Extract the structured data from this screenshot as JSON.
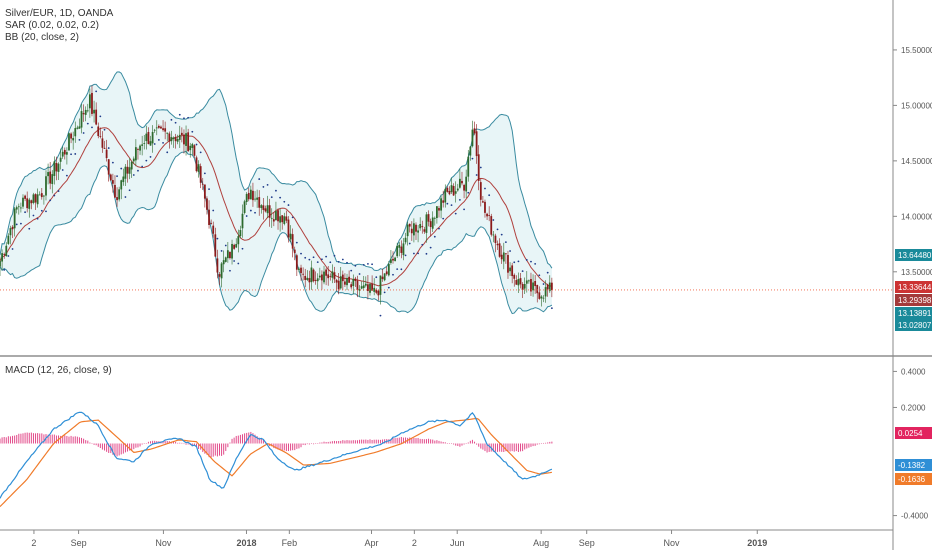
{
  "legend": {
    "main": [
      "Silver/EUR, 1D, OANDA",
      "SAR (0.02, 0.02, 0.2)",
      "BB (20, close, 2)"
    ],
    "macd": "MACD (12, 26, close, 9)"
  },
  "colors": {
    "candle_up": "#2d6a2d",
    "candle_down": "#8b1a1a",
    "bb_band": "#3a8ba0",
    "bb_basis": "#b0413e",
    "bb_fill": "#d9eef1",
    "sar": "#1f3b8a",
    "macd_line": "#2f8fd6",
    "signal_line": "#f07b2a",
    "hist": "#e24a8a",
    "price_line": "#f06040",
    "tag_bb_upper": "#1a8a9a",
    "tag_price": "#cc3333",
    "tag_bb_basis": "#a33a3a",
    "tag_macd": "#2f8fd6",
    "tag_signal": "#f07b2a",
    "tag_hist": "#e2245f"
  },
  "chart_data": {
    "type": "candlestick",
    "symbol": "Silver/EUR",
    "timeframe": "1D",
    "source": "OANDA",
    "x_ticks": [
      {
        "label": "2",
        "t": 0.038
      },
      {
        "label": "Sep",
        "t": 0.088
      },
      {
        "label": "Nov",
        "t": 0.183
      },
      {
        "label": "2018",
        "t": 0.276,
        "bold": true
      },
      {
        "label": "Feb",
        "t": 0.324
      },
      {
        "label": "Apr",
        "t": 0.416
      },
      {
        "label": "2",
        "t": 0.464
      },
      {
        "label": "Jun",
        "t": 0.512
      },
      {
        "label": "Aug",
        "t": 0.606
      },
      {
        "label": "Sep",
        "t": 0.657
      },
      {
        "label": "Nov",
        "t": 0.752
      },
      {
        "label": "2019",
        "t": 0.848,
        "bold": true
      }
    ],
    "data_end_t": 0.618,
    "price_pane": {
      "ylim": [
        12.75,
        15.95
      ],
      "y_ticks": [
        "15.50000",
        "15.00000",
        "14.50000",
        "14.00000",
        "13.50000"
      ],
      "close_keyframes": [
        [
          0.0,
          13.6
        ],
        [
          0.02,
          14.1
        ],
        [
          0.045,
          14.2
        ],
        [
          0.07,
          14.55
        ],
        [
          0.1,
          15.05
        ],
        [
          0.13,
          14.2
        ],
        [
          0.16,
          14.7
        ],
        [
          0.19,
          14.75
        ],
        [
          0.215,
          14.65
        ],
        [
          0.235,
          13.95
        ],
        [
          0.245,
          13.5
        ],
        [
          0.26,
          13.7
        ],
        [
          0.28,
          14.25
        ],
        [
          0.3,
          14.05
        ],
        [
          0.32,
          14.0
        ],
        [
          0.335,
          13.45
        ],
        [
          0.36,
          13.5
        ],
        [
          0.38,
          13.4
        ],
        [
          0.4,
          13.35
        ],
        [
          0.42,
          13.3
        ],
        [
          0.44,
          13.6
        ],
        [
          0.46,
          13.9
        ],
        [
          0.48,
          13.95
        ],
        [
          0.5,
          14.2
        ],
        [
          0.52,
          14.3
        ],
        [
          0.53,
          14.85
        ],
        [
          0.54,
          14.1
        ],
        [
          0.56,
          13.7
        ],
        [
          0.58,
          13.4
        ],
        [
          0.6,
          13.32
        ],
        [
          0.618,
          13.33
        ]
      ],
      "last_close": 13.33644,
      "tags": [
        {
          "label": "13.64480",
          "value": 13.6448,
          "color": "tag_bb_upper"
        },
        {
          "label": "13.33644",
          "value": 13.33644,
          "color": "tag_price"
        },
        {
          "label": "13.29398",
          "value": 13.29398,
          "color": "tag_bb_basis"
        },
        {
          "label": "13.13891",
          "value": 13.13891,
          "color": "tag_bb_upper"
        },
        {
          "label": "13.02807",
          "value": 13.02807,
          "color": "tag_bb_upper"
        }
      ]
    },
    "macd_pane": {
      "ylim": [
        -0.48,
        0.48
      ],
      "y_ticks": [
        "0.4000",
        "0.2000",
        "-0.4000"
      ],
      "macd_keyframes": [
        [
          0.0,
          -0.3
        ],
        [
          0.03,
          -0.1
        ],
        [
          0.06,
          0.08
        ],
        [
          0.09,
          0.18
        ],
        [
          0.11,
          0.1
        ],
        [
          0.13,
          -0.08
        ],
        [
          0.15,
          -0.1
        ],
        [
          0.17,
          0.0
        ],
        [
          0.2,
          0.03
        ],
        [
          0.22,
          -0.02
        ],
        [
          0.235,
          -0.2
        ],
        [
          0.25,
          -0.25
        ],
        [
          0.265,
          -0.08
        ],
        [
          0.28,
          0.05
        ],
        [
          0.295,
          0.02
        ],
        [
          0.31,
          -0.08
        ],
        [
          0.33,
          -0.15
        ],
        [
          0.35,
          -0.12
        ],
        [
          0.4,
          -0.04
        ],
        [
          0.43,
          0.0
        ],
        [
          0.45,
          0.06
        ],
        [
          0.48,
          0.12
        ],
        [
          0.5,
          0.13
        ],
        [
          0.515,
          0.1
        ],
        [
          0.53,
          0.17
        ],
        [
          0.545,
          0.0
        ],
        [
          0.565,
          -0.1
        ],
        [
          0.585,
          -0.2
        ],
        [
          0.6,
          -0.18
        ],
        [
          0.618,
          -0.14
        ]
      ],
      "signal_keyframes": [
        [
          0.0,
          -0.35
        ],
        [
          0.03,
          -0.2
        ],
        [
          0.06,
          0.0
        ],
        [
          0.09,
          0.12
        ],
        [
          0.11,
          0.13
        ],
        [
          0.13,
          0.04
        ],
        [
          0.15,
          -0.05
        ],
        [
          0.17,
          -0.03
        ],
        [
          0.2,
          0.02
        ],
        [
          0.22,
          0.01
        ],
        [
          0.24,
          -0.1
        ],
        [
          0.26,
          -0.18
        ],
        [
          0.28,
          -0.06
        ],
        [
          0.3,
          0.0
        ],
        [
          0.32,
          -0.05
        ],
        [
          0.34,
          -0.12
        ],
        [
          0.37,
          -0.11
        ],
        [
          0.42,
          -0.05
        ],
        [
          0.45,
          0.0
        ],
        [
          0.48,
          0.08
        ],
        [
          0.5,
          0.12
        ],
        [
          0.52,
          0.13
        ],
        [
          0.535,
          0.14
        ],
        [
          0.55,
          0.05
        ],
        [
          0.57,
          -0.05
        ],
        [
          0.59,
          -0.15
        ],
        [
          0.605,
          -0.17
        ],
        [
          0.618,
          -0.16
        ]
      ],
      "tags": [
        {
          "label": "0.0254",
          "value": 0.0254,
          "color": "tag_hist"
        },
        {
          "label": "-0.1382",
          "value": -0.1382,
          "color": "tag_macd"
        },
        {
          "label": "-0.1636",
          "value": -0.1636,
          "color": "tag_signal"
        }
      ]
    }
  }
}
